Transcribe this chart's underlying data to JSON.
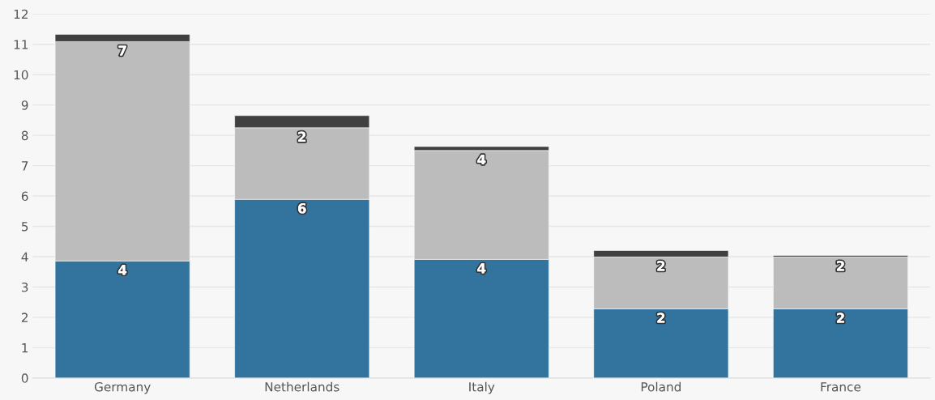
{
  "chart_data": {
    "type": "bar",
    "stacked": true,
    "categories": [
      "Germany",
      "Netherlands",
      "Italy",
      "Poland",
      "France"
    ],
    "series": [
      {
        "color": "#33749f",
        "values": [
          3.86,
          5.89,
          3.91,
          2.28,
          2.28
        ],
        "value_labels": [
          "4",
          "6",
          "4",
          "2",
          "2"
        ]
      },
      {
        "color": "#bcbcbc",
        "values": [
          7.23,
          2.36,
          3.59,
          1.71,
          1.71
        ],
        "value_labels": [
          "7",
          "2",
          "4",
          "2",
          "2"
        ]
      },
      {
        "color": "#404040",
        "values": [
          0.24,
          0.4,
          0.13,
          0.21,
          0.05
        ]
      }
    ],
    "ylim": [
      0,
      12
    ],
    "yticks": [
      0,
      1,
      2,
      3,
      4,
      5,
      6,
      7,
      8,
      9,
      10,
      11,
      12
    ],
    "grid": "y"
  }
}
